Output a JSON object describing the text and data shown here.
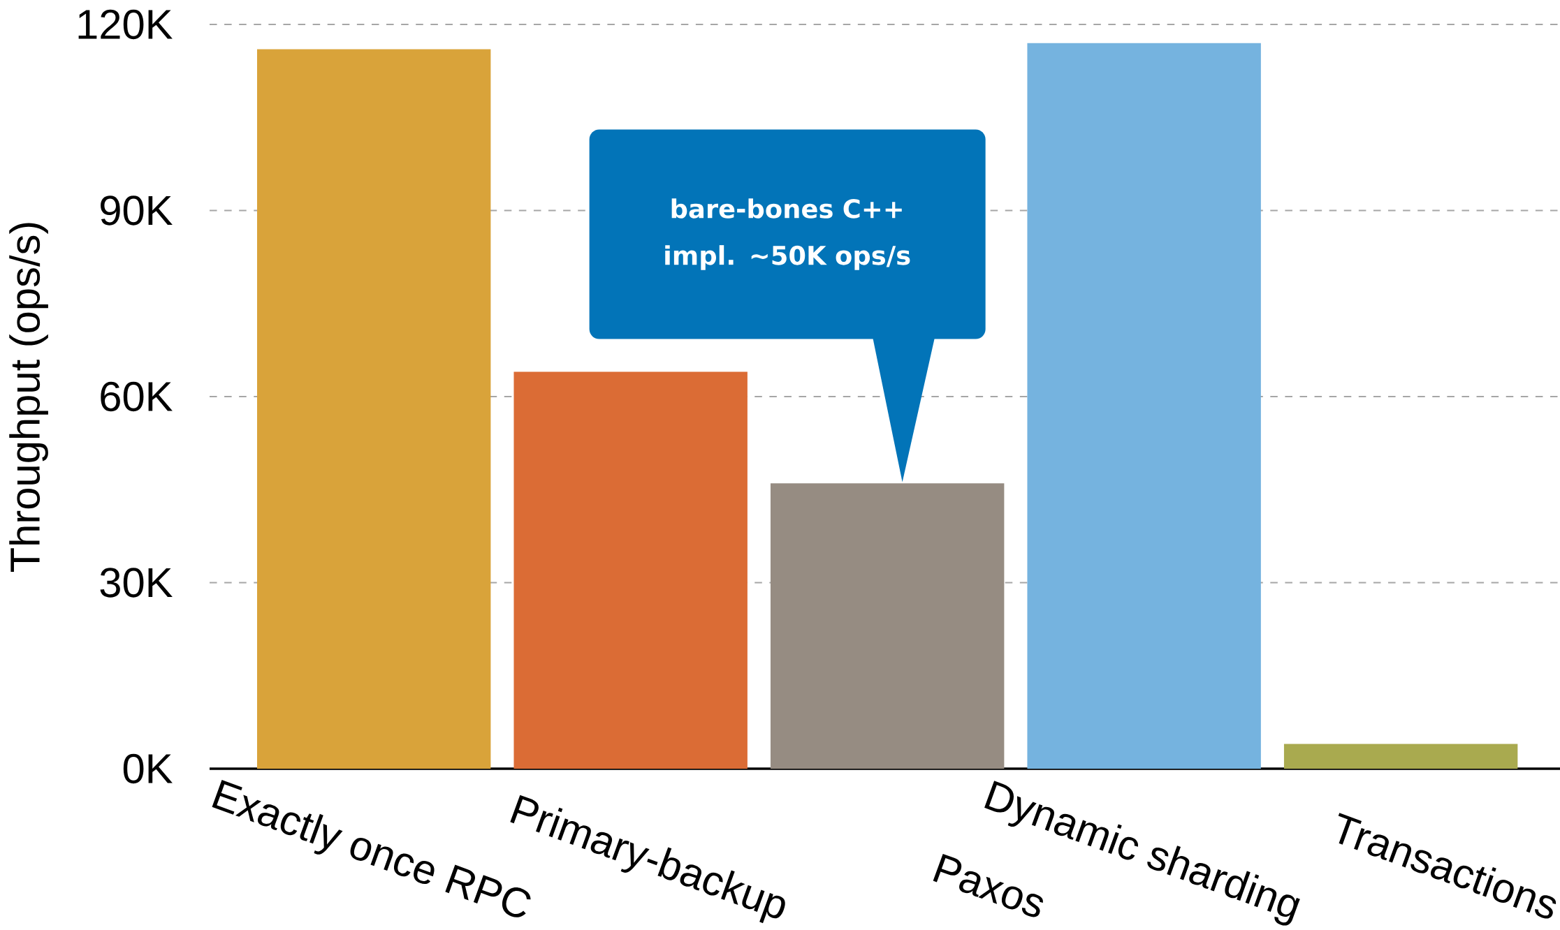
{
  "chart_data": {
    "type": "bar",
    "ylabel": "Throughput (ops/s)",
    "categories": [
      "Exactly once RPC",
      "Primary-backup",
      "Paxos",
      "Dynamic sharding",
      "Transactions"
    ],
    "values": [
      116000,
      64000,
      46000,
      117000,
      4000
    ],
    "colors": [
      "#d9a33a",
      "#db6c35",
      "#968c82",
      "#75b3df",
      "#a9aa4f"
    ],
    "ylim": [
      0,
      120000
    ],
    "yticks": [
      {
        "value": 0,
        "label": "0K"
      },
      {
        "value": 30000,
        "label": "30K"
      },
      {
        "value": 60000,
        "label": "60K"
      },
      {
        "value": 90000,
        "label": "90K"
      },
      {
        "value": 120000,
        "label": "120K"
      }
    ],
    "grid": "y",
    "annotations": [
      "bare-bones C++ impl. ~50K ops/s"
    ]
  }
}
